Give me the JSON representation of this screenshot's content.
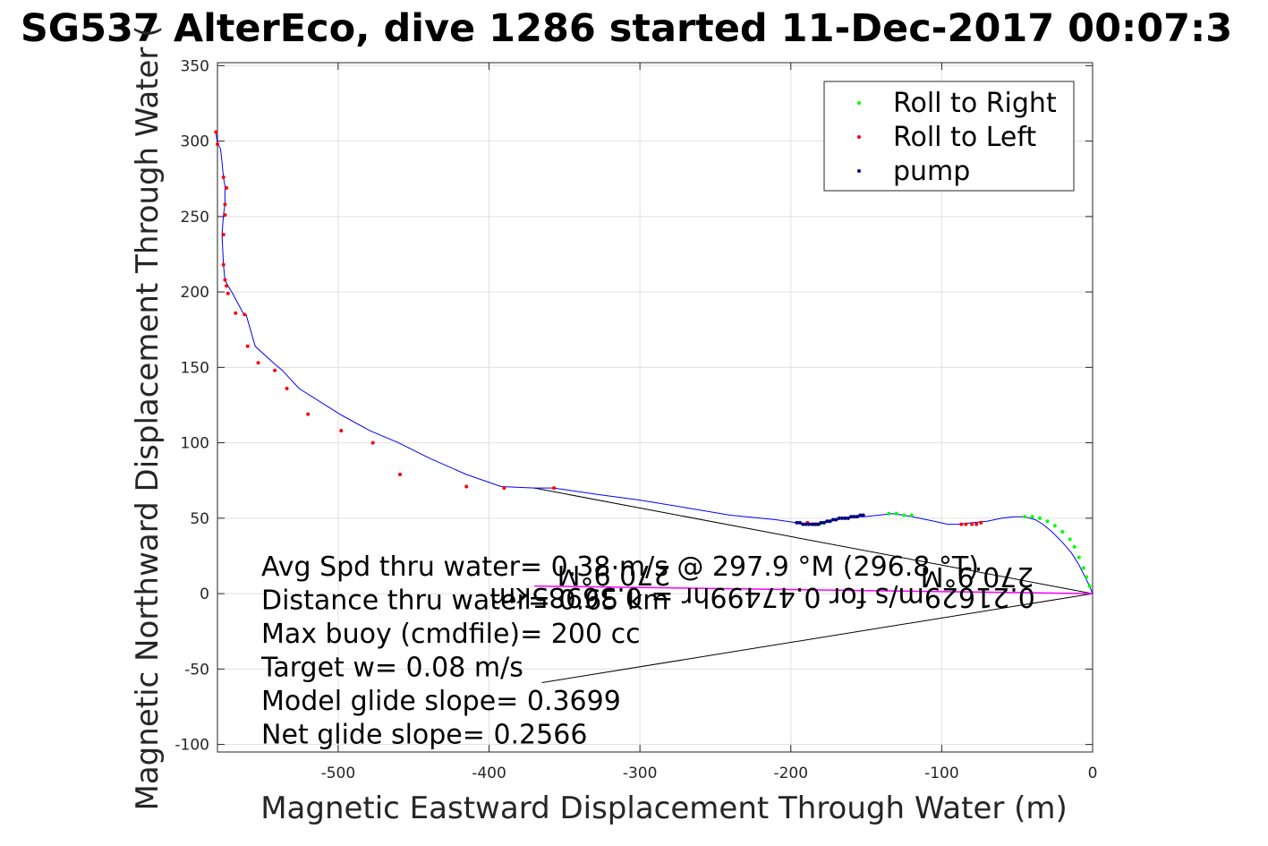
{
  "chart_data": {
    "type": "line",
    "title": "SG537 AlterEco, dive 1286 started 11-Dec-2017 00:07:3",
    "xlabel": "Magnetic Eastward Displacement Through Water (m)",
    "ylabel": "Magnetic Northward Displacement Through Water (",
    "xlim": [
      -580,
      0
    ],
    "ylim": [
      -105,
      352
    ],
    "xticks": [
      -500,
      -400,
      -300,
      -200,
      -100,
      0
    ],
    "yticks": [
      -100,
      -50,
      0,
      50,
      100,
      150,
      200,
      250,
      300,
      350
    ],
    "xtick_labels": [
      "-500",
      "-400",
      "-300",
      "-200",
      "-100",
      "0"
    ],
    "ytick_labels": [
      "-100",
      "-50",
      "0",
      "50",
      "100",
      "150",
      "200",
      "250",
      "300",
      "350"
    ],
    "grid": true,
    "legend_position": "top-right",
    "legend": [
      "Roll to Right",
      "Roll to Left",
      "pump"
    ],
    "colors": {
      "track": "#0000ff",
      "roll_right": "#00ff00",
      "roll_left": "#ff0000",
      "pump": "#000080",
      "vector": "#000000",
      "current": "#ff00ff",
      "grid": "#e0e0e0"
    },
    "track": {
      "x": [
        0,
        -2,
        -5,
        -9,
        -14,
        -20,
        -27,
        -33,
        -38,
        -45,
        -52,
        -60,
        -70,
        -80,
        -88,
        -96,
        -105,
        -115,
        -125,
        -133,
        -142,
        -152,
        -158,
        -165,
        -170,
        -175,
        -180,
        -185,
        -190,
        -196,
        -210,
        -240,
        -270,
        -300,
        -330,
        -357,
        -370,
        -392,
        -415,
        -440,
        -460,
        -479,
        -499,
        -526,
        -537,
        -543,
        -555,
        -561,
        -563,
        -570,
        -573,
        -575,
        -576,
        -577,
        -576,
        -575,
        -575,
        -575,
        -575,
        -576,
        -577,
        -578,
        -580,
        -581
      ],
      "y": [
        0,
        5,
        11,
        19,
        27,
        34,
        41,
        46,
        49,
        51,
        51,
        50,
        48,
        47,
        46,
        46,
        48,
        50,
        52,
        53,
        52,
        51,
        51,
        50,
        49,
        48,
        47,
        46,
        46,
        47,
        49,
        52,
        57,
        62,
        66,
        70,
        70,
        71,
        79,
        90,
        100,
        108,
        119,
        136,
        148,
        153,
        164,
        185,
        186,
        199,
        204,
        208,
        218,
        238,
        251,
        258,
        262,
        269,
        270,
        276,
        286,
        295,
        298,
        306
      ]
    },
    "roll_left_points": {
      "x": [
        -581,
        -580,
        -576,
        -574,
        -575,
        -575,
        -576,
        -576,
        -575,
        -574,
        -573,
        -568,
        -562,
        -560,
        -553,
        -542,
        -534,
        -520,
        -498,
        -477,
        -459,
        -415,
        -390,
        -357,
        -189,
        -185,
        -183,
        -87,
        -84,
        -80,
        -77,
        -74
      ],
      "y": [
        306,
        298,
        276,
        269,
        258,
        251,
        238,
        218,
        208,
        204,
        199,
        186,
        185,
        164,
        153,
        148,
        136,
        119,
        108,
        100,
        79,
        71,
        70,
        70,
        47,
        46,
        46,
        46,
        46,
        46,
        46,
        47
      ]
    },
    "roll_right_points": {
      "x": [
        -181,
        -178,
        -175,
        -135,
        -130,
        -125,
        -120,
        -45,
        -40,
        -35,
        -30,
        -25,
        -20,
        -15,
        -12,
        -9,
        -6,
        -4,
        -2
      ],
      "y": [
        46,
        47,
        48,
        53,
        53,
        52,
        52,
        51,
        51,
        50,
        48,
        45,
        41,
        36,
        31,
        24,
        17,
        11,
        5
      ]
    },
    "pump_points": {
      "x": [
        -196,
        -194,
        -192,
        -190,
        -188,
        -186,
        -184,
        -182,
        -180,
        -178,
        -176,
        -174,
        -172,
        -170,
        -168,
        -166,
        -164,
        -162,
        -160,
        -158,
        -156,
        -154,
        -152
      ],
      "y": [
        47,
        47,
        46,
        46,
        46,
        46,
        46,
        46,
        47,
        47,
        48,
        48,
        49,
        49,
        50,
        50,
        50,
        50,
        51,
        51,
        51,
        52,
        52
      ]
    },
    "vectors": [
      {
        "x": [
          -370,
          0
        ],
        "y": [
          70,
          0
        ]
      },
      {
        "x": [
          -365,
          0
        ],
        "y": [
          -59,
          0
        ]
      }
    ],
    "current_vector": {
      "x": [
        -370,
        0
      ],
      "y": [
        5,
        0
      ]
    },
    "annotations": [
      "Avg Spd thru water= 0.38 m/s @ 297.9 °M (296.8 °T)",
      "Distance thru water= 0.65 km",
      "Max buoy (cmdfile)= 200 cc",
      "Target w= 0.08 m/s",
      "Model glide slope= 0.3699",
      "Net glide slope= 0.2566"
    ],
    "flipped_annotations": [
      "0.21629m/s for 0.47499hr = 0.36985km",
      "270.9°M"
    ]
  }
}
